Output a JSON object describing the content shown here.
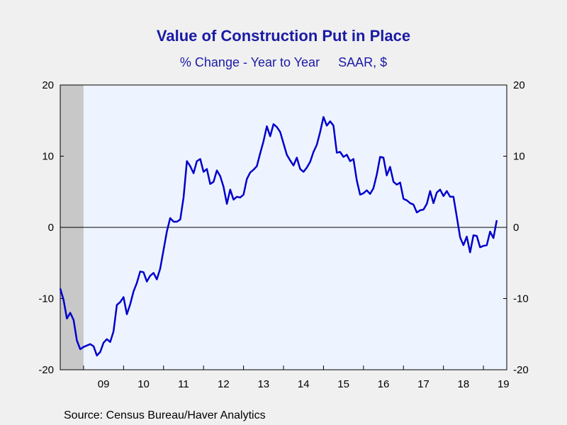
{
  "chart_data": {
    "type": "line",
    "title": "Value of Construction Put in Place",
    "subtitle_left": "% Change - Year to Year",
    "subtitle_right": "SAAR, $",
    "source": "Source:  Census Bureau/Haver Analytics",
    "xlabel": "",
    "ylabel": "",
    "ylim": [
      -20,
      20
    ],
    "yticks": [
      -20,
      -10,
      0,
      10,
      20
    ],
    "xlim": [
      2008.4167,
      2019.5833
    ],
    "xticks": [
      {
        "label": "09",
        "x": 2009.5
      },
      {
        "label": "10",
        "x": 2010.5
      },
      {
        "label": "11",
        "x": 2011.5
      },
      {
        "label": "12",
        "x": 2012.5
      },
      {
        "label": "13",
        "x": 2013.5
      },
      {
        "label": "14",
        "x": 2014.5
      },
      {
        "label": "15",
        "x": 2015.5
      },
      {
        "label": "16",
        "x": 2016.5
      },
      {
        "label": "17",
        "x": 2017.5
      },
      {
        "label": "18",
        "x": 2018.5
      },
      {
        "label": "19",
        "x": 2019.5
      }
    ],
    "recession_shade": {
      "x0": 2008.4167,
      "x1": 2009.0
    },
    "grid": false,
    "zero_line": true,
    "colors": {
      "line": "#0000cc",
      "plot_bg": "#eef4ff",
      "recession": "#c8c8c8",
      "text": "#1a1aa6"
    },
    "series": [
      {
        "x_start": 2008.4167,
        "step": 0.083333,
        "values": [
          -8.6,
          -10.2,
          -12.8,
          -12.0,
          -13.0,
          -15.9,
          -17.1,
          -16.8,
          -16.6,
          -16.4,
          -16.7,
          -18.0,
          -17.5,
          -16.2,
          -15.7,
          -16.1,
          -14.6,
          -10.9,
          -10.5,
          -9.8,
          -12.2,
          -10.8,
          -9.0,
          -7.8,
          -6.2,
          -6.3,
          -7.6,
          -6.8,
          -6.4,
          -7.3,
          -5.8,
          -3.2,
          -0.6,
          1.3,
          0.8,
          0.8,
          1.1,
          4.2,
          9.3,
          8.6,
          7.6,
          9.3,
          9.6,
          7.8,
          8.2,
          6.1,
          6.4,
          8.0,
          7.2,
          5.7,
          3.3,
          5.3,
          3.9,
          4.3,
          4.2,
          4.6,
          6.8,
          7.7,
          8.1,
          8.6,
          10.4,
          12.1,
          14.2,
          12.8,
          14.5,
          14.1,
          13.4,
          11.8,
          10.2,
          9.4,
          8.7,
          9.8,
          8.2,
          7.8,
          8.4,
          9.2,
          10.6,
          11.6,
          13.4,
          15.5,
          14.3,
          14.9,
          14.3,
          10.5,
          10.6,
          9.9,
          10.2,
          9.3,
          9.6,
          6.6,
          4.6,
          4.8,
          5.2,
          4.7,
          5.5,
          7.4,
          9.9,
          9.8,
          7.3,
          8.5,
          6.4,
          6.0,
          6.3,
          4.0,
          3.8,
          3.4,
          3.2,
          2.1,
          2.4,
          2.5,
          3.3,
          5.1,
          3.4,
          4.9,
          5.3,
          4.4,
          5.1,
          4.3,
          4.3,
          1.5,
          -1.4,
          -2.5,
          -1.3,
          -3.5,
          -1.1,
          -1.2,
          -2.8,
          -2.6,
          -2.5,
          -0.6,
          -1.5,
          1.0
        ]
      }
    ]
  }
}
